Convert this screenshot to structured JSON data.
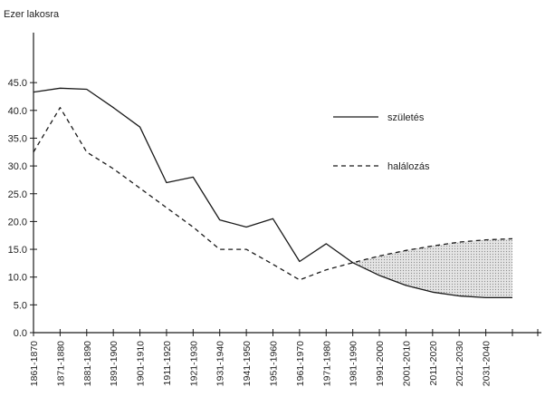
{
  "chart_data": {
    "type": "line",
    "title": "",
    "xlabel": "",
    "ylabel": "Ezer lakosra",
    "ylim": [
      0,
      45
    ],
    "yticks": [
      "0.0",
      "5.0",
      "10.0",
      "15.0",
      "20.0",
      "25.0",
      "30.0",
      "35.0",
      "40.0",
      "45.0"
    ],
    "categories": [
      "1861-1870",
      "1871-1880",
      "1881-1890",
      "1891-1900",
      "1901-1910",
      "1911-1920",
      "1921-1930",
      "1931-1940",
      "1941-1950",
      "1951-1960",
      "1961-1970",
      "1971-1980",
      "1981-1990",
      "1991-2000",
      "2001-2010",
      "2011-2020",
      "2021-2030",
      "2031-2040"
    ],
    "x": [
      1861,
      1871,
      1881,
      1891,
      1901,
      1911,
      1921,
      1931,
      1941,
      1951,
      1961,
      1971,
      1981,
      1991,
      2001,
      2011,
      2021,
      2031,
      2041
    ],
    "series": [
      {
        "name": "születés",
        "style": "solid",
        "color": "#1a1a1a",
        "values": [
          43.3,
          44.0,
          43.8,
          40.5,
          37.0,
          27.0,
          28.0,
          20.3,
          19.0,
          20.5,
          12.8,
          16.0,
          12.6,
          10.3,
          8.5,
          7.3,
          6.6,
          6.3,
          6.3
        ]
      },
      {
        "name": "halálozás",
        "style": "dashed",
        "color": "#1a1a1a",
        "values": [
          32.5,
          40.5,
          32.5,
          29.5,
          26.0,
          22.5,
          19.0,
          15.0,
          15.0,
          12.3,
          9.5,
          11.3,
          12.6,
          13.8,
          14.8,
          15.6,
          16.3,
          16.7,
          16.9
        ]
      }
    ],
    "shaded_region": {
      "between": [
        "születés",
        "halálozás"
      ],
      "from_x": 1981,
      "to_x": 2041,
      "fill": "#dddddd"
    },
    "legend": {
      "placement": "top-right"
    },
    "grid": false
  }
}
